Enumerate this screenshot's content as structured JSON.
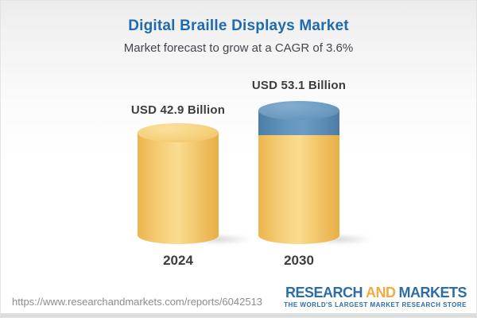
{
  "header": {
    "title": "Digital Braille Displays Market",
    "subtitle": "Market forecast to grow at a CAGR of 3.6%"
  },
  "chart_data": {
    "type": "bar",
    "subtype": "3d-cylinder",
    "title": "Digital Braille Displays Market",
    "subtitle": "Market forecast to grow at a CAGR of 3.6%",
    "unit": "USD Billion",
    "cagr_percent": 3.6,
    "categories": [
      "2024",
      "2030"
    ],
    "values": [
      42.9,
      53.1
    ],
    "bars": [
      {
        "year": "2024",
        "value": 42.9,
        "value_label": "USD 42.9 Billion",
        "segments": [
          "base"
        ]
      },
      {
        "year": "2030",
        "value": 53.1,
        "value_label": "USD 53.1 Billion",
        "segments": [
          "base",
          "growth"
        ]
      }
    ],
    "colors": {
      "base_segment": "#f2c569",
      "growth_segment": "#5f90b9"
    },
    "legend": "none",
    "grid": "off",
    "xlabel": "",
    "ylabel": ""
  },
  "footer": {
    "url": "https://www.researchandmarkets.com/reports/6042513",
    "logo": {
      "word1": "RESEARCH",
      "word2": "AND",
      "word3": "MARKETS",
      "tagline": "THE WORLD'S LARGEST MARKET RESEARCH STORE"
    }
  },
  "theme": {
    "title_color": "#1f6bad",
    "text_color": "#42464d",
    "url_color": "#8d8d8d",
    "logo_blue": "#2d6da6",
    "logo_orange": "#f1ab41"
  }
}
